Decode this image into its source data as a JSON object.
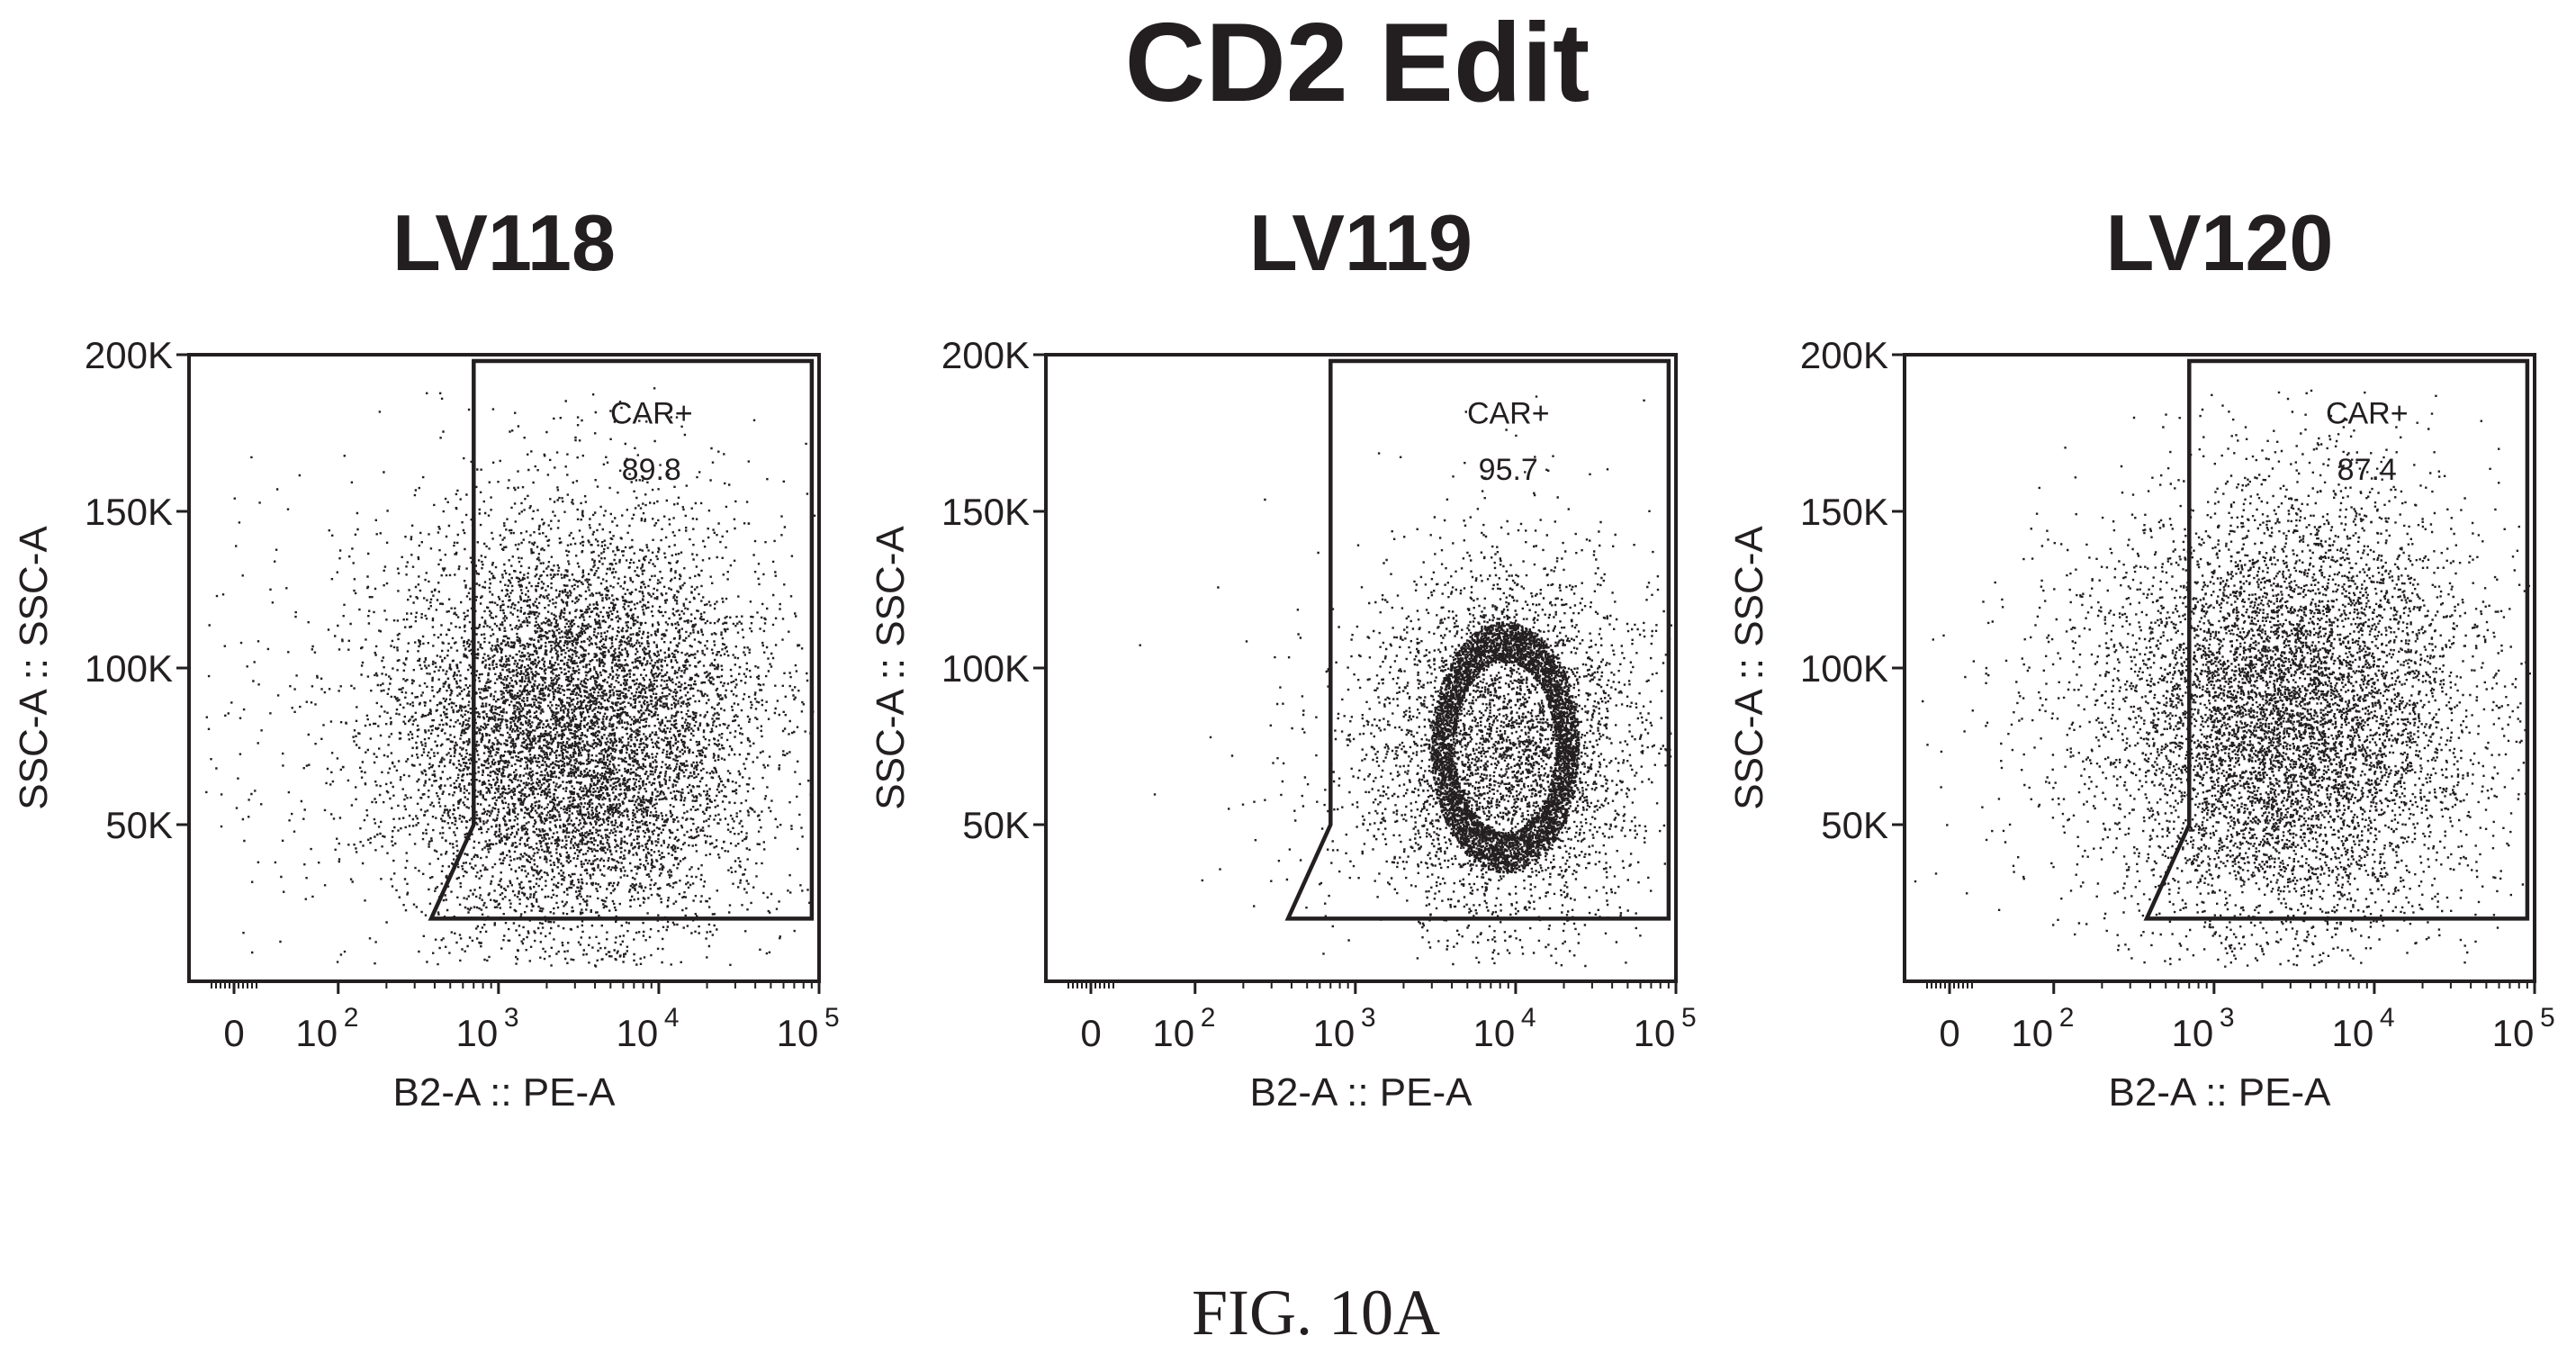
{
  "title": "CD2 Edit",
  "caption": "FIG. 10A",
  "chart_data": [
    {
      "type": "scatter",
      "title": "LV118",
      "xlabel": "B2-A :: PE-A",
      "ylabel": "SSC-A :: SSC-A",
      "x_scale": "biexponential",
      "xlim": [
        -60,
        100000
      ],
      "ylim": [
        0,
        200000
      ],
      "x_ticks": [
        {
          "base": "0",
          "exp": ""
        },
        {
          "base": "10",
          "exp": "2"
        },
        {
          "base": "10",
          "exp": "3"
        },
        {
          "base": "10",
          "exp": "4"
        },
        {
          "base": "10",
          "exp": "5"
        }
      ],
      "x_tick_values": [
        0,
        100,
        1000,
        10000,
        100000
      ],
      "y_ticks": [
        "50K",
        "100K",
        "150K",
        "200K"
      ],
      "y_tick_values": [
        50000,
        100000,
        150000,
        200000
      ],
      "gate": {
        "name": "CAR+",
        "percent": "89.8",
        "polygon": [
          [
            380,
            20000
          ],
          [
            700,
            50000
          ],
          [
            700,
            198000
          ],
          [
            90000,
            198000
          ],
          [
            90000,
            20000
          ]
        ]
      },
      "population": {
        "center_x": 3000,
        "center_y": 80000,
        "spread_log_x": 0.55,
        "spread_y": 32000,
        "events": 9000,
        "bright_ring": false
      }
    },
    {
      "type": "scatter",
      "title": "LV119",
      "xlabel": "B2-A :: PE-A",
      "ylabel": "SSC-A :: SSC-A",
      "x_scale": "biexponential",
      "xlim": [
        -60,
        100000
      ],
      "ylim": [
        0,
        200000
      ],
      "x_ticks": [
        {
          "base": "0",
          "exp": ""
        },
        {
          "base": "10",
          "exp": "2"
        },
        {
          "base": "10",
          "exp": "3"
        },
        {
          "base": "10",
          "exp": "4"
        },
        {
          "base": "10",
          "exp": "5"
        }
      ],
      "x_tick_values": [
        0,
        100,
        1000,
        10000,
        100000
      ],
      "y_ticks": [
        "50K",
        "100K",
        "150K",
        "200K"
      ],
      "y_tick_values": [
        50000,
        100000,
        150000,
        200000
      ],
      "gate": {
        "name": "CAR+",
        "percent": "95.7",
        "polygon": [
          [
            380,
            20000
          ],
          [
            700,
            50000
          ],
          [
            700,
            198000
          ],
          [
            90000,
            198000
          ],
          [
            90000,
            20000
          ]
        ]
      },
      "population": {
        "center_x": 8500,
        "center_y": 75000,
        "spread_log_x": 0.42,
        "spread_y": 28000,
        "events": 9000,
        "bright_ring": true
      }
    },
    {
      "type": "scatter",
      "title": "LV120",
      "xlabel": "B2-A :: PE-A",
      "ylabel": "SSC-A :: SSC-A",
      "x_scale": "biexponential",
      "xlim": [
        -60,
        100000
      ],
      "ylim": [
        0,
        200000
      ],
      "x_ticks": [
        {
          "base": "0",
          "exp": ""
        },
        {
          "base": "10",
          "exp": "2"
        },
        {
          "base": "10",
          "exp": "3"
        },
        {
          "base": "10",
          "exp": "4"
        },
        {
          "base": "10",
          "exp": "5"
        }
      ],
      "x_tick_values": [
        0,
        100,
        1000,
        10000,
        100000
      ],
      "y_ticks": [
        "50K",
        "100K",
        "150K",
        "200K"
      ],
      "y_tick_values": [
        50000,
        100000,
        150000,
        200000
      ],
      "gate": {
        "name": "CAR+",
        "percent": "87.4",
        "polygon": [
          [
            380,
            20000
          ],
          [
            700,
            50000
          ],
          [
            700,
            198000
          ],
          [
            90000,
            198000
          ],
          [
            90000,
            20000
          ]
        ]
      },
      "population": {
        "center_x": 2800,
        "center_y": 85000,
        "spread_log_x": 0.55,
        "spread_y": 34000,
        "events": 8000,
        "bright_ring": false
      }
    }
  ]
}
